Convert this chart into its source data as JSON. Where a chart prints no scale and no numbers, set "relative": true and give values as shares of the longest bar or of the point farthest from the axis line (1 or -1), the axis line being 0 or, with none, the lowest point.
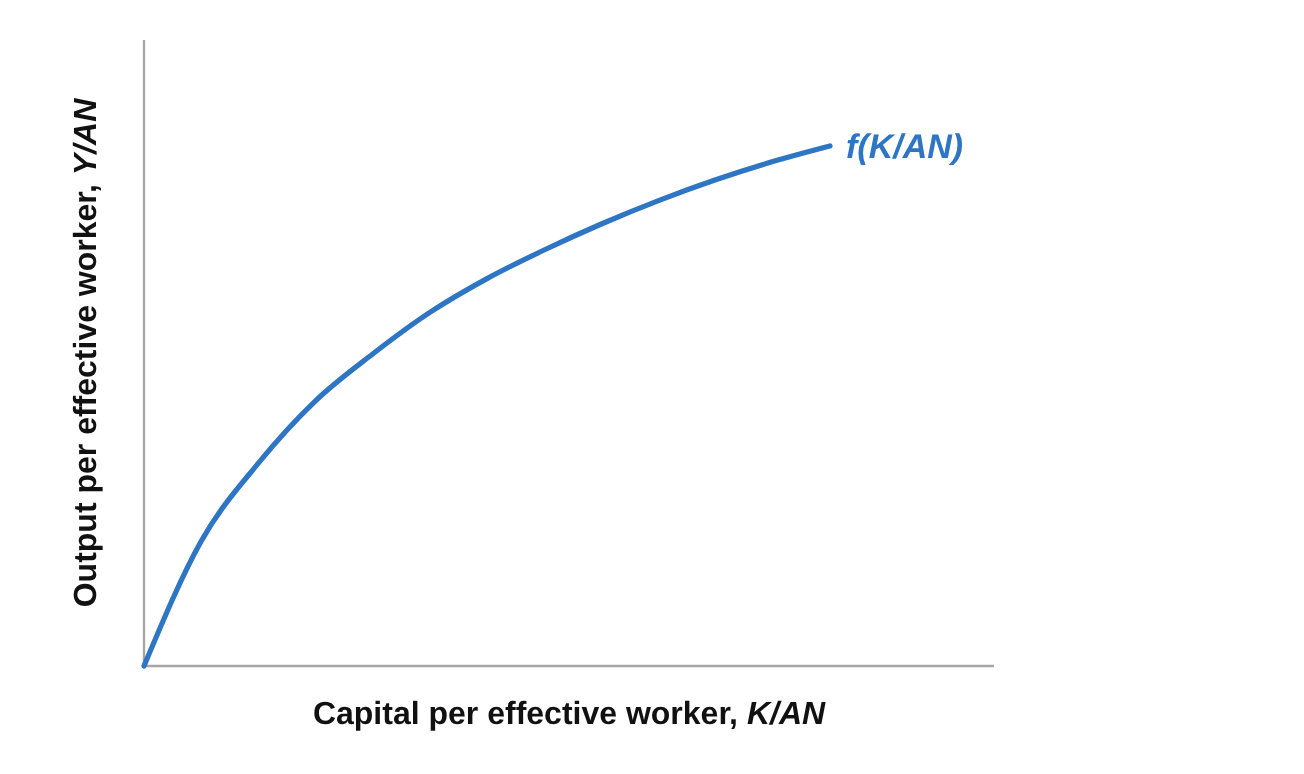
{
  "chart_data": {
    "type": "line",
    "relative": true,
    "xlabel": "Capital per effective worker, K/AN",
    "ylabel": "Output per effective worker, Y/AN",
    "categories": [
      null,
      null,
      null,
      null,
      null,
      null,
      null,
      null,
      null,
      null,
      null,
      null,
      null
    ],
    "series": [
      {
        "name": "f(K/AN)",
        "color": "#2e75c4",
        "values": [
          0,
          0.24,
          0.39,
          0.51,
          0.6,
          0.68,
          0.745,
          0.8,
          0.85,
          0.895,
          0.935,
          0.97,
          1
        ]
      }
    ],
    "marker": "none",
    "line_style": "solid",
    "grid": false
  }
}
